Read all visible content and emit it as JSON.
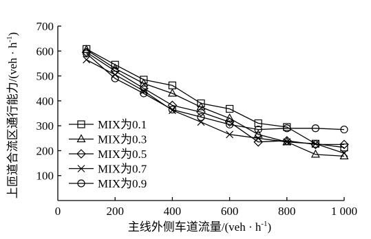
{
  "chart_data": {
    "type": "line",
    "xlabel": "主线外侧车道流量/(veh · h",
    "xlabel_sup": "-1",
    "xlabel_end": ")",
    "ylabel": "上匝道合流区通行能力/(veh · h",
    "ylabel_sup": "-1",
    "ylabel_end": ")",
    "xlim": [
      0,
      1000
    ],
    "ylim": [
      0,
      700
    ],
    "xticks": [
      0,
      200,
      400,
      600,
      800,
      1000
    ],
    "xtick_labels": [
      "0",
      "200",
      "400",
      "600",
      "800",
      "1 000"
    ],
    "yticks": [
      100,
      200,
      300,
      400,
      500,
      600,
      700
    ],
    "ytick_labels": [
      "100",
      "200",
      "300",
      "400",
      "500",
      "600",
      "700"
    ],
    "x": [
      100,
      200,
      300,
      400,
      500,
      600,
      700,
      800,
      900,
      1000
    ],
    "legend_position": "left",
    "series": [
      {
        "name": "MIX为0.1",
        "marker": "square",
        "values": [
          608,
          545,
          485,
          462,
          390,
          368,
          310,
          295,
          228,
          213
        ]
      },
      {
        "name": "MIX为0.3",
        "marker": "triangle",
        "values": [
          605,
          530,
          470,
          430,
          375,
          330,
          265,
          235,
          185,
          178
        ]
      },
      {
        "name": "MIX为0.5",
        "marker": "diamond",
        "values": [
          595,
          520,
          450,
          382,
          355,
          315,
          235,
          240,
          225,
          225
        ]
      },
      {
        "name": "MIX为0.7",
        "marker": "x",
        "values": [
          565,
          505,
          440,
          362,
          315,
          265,
          250,
          235,
          228,
          190
        ]
      },
      {
        "name": "MIX为0.9",
        "marker": "circle",
        "values": [
          590,
          490,
          430,
          365,
          335,
          305,
          285,
          290,
          290,
          285
        ]
      }
    ]
  }
}
